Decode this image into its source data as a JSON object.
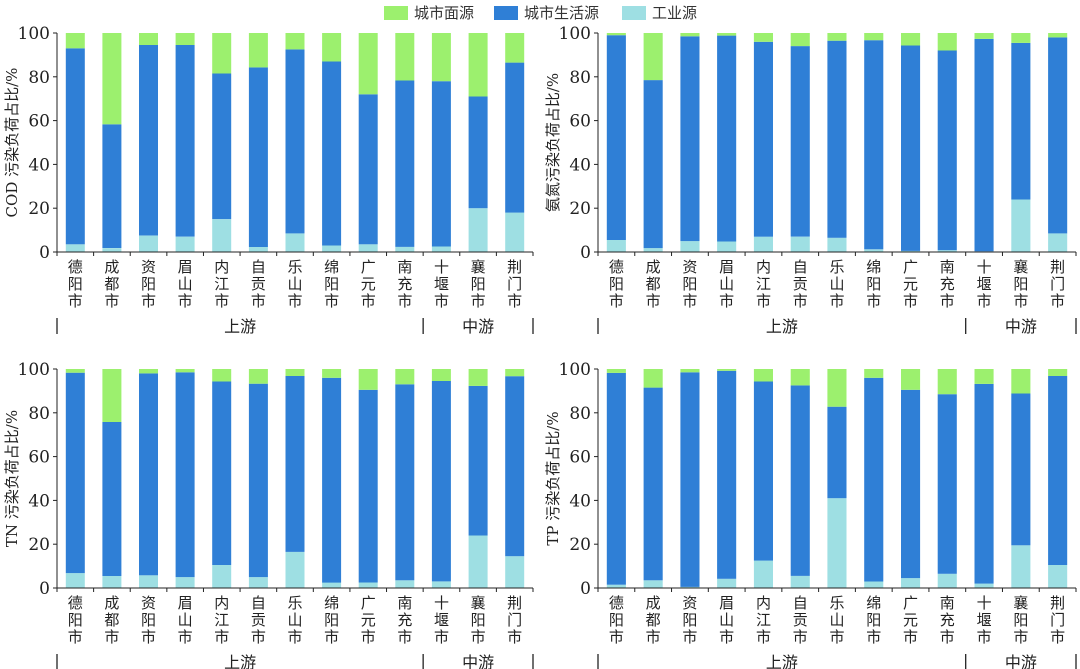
{
  "legend": [
    {
      "label": "城市面源",
      "color": "#9cf06e"
    },
    {
      "label": "城市生活源",
      "color": "#2f7fd6"
    },
    {
      "label": "工业源",
      "color": "#9edfe3"
    }
  ],
  "chart_data": [
    {
      "type": "bar",
      "stacked": true,
      "title": "",
      "ylabel": "COD 污染负荷占比/%",
      "xlabel": "",
      "ylim": [
        0,
        100
      ],
      "yticks": [
        0,
        20,
        40,
        60,
        80,
        100
      ],
      "categories": [
        "德阳市",
        "成都市",
        "资阳市",
        "眉山市",
        "内江市",
        "自贡市",
        "乐山市",
        "绵阳市",
        "广元市",
        "南充市",
        "十堰市",
        "襄阳市",
        "荆门市"
      ],
      "groups": [
        {
          "label": "上游",
          "from": 0,
          "to": 9
        },
        {
          "label": "中游",
          "from": 10,
          "to": 12
        }
      ],
      "series": [
        {
          "name": "工业源",
          "values": [
            3.5,
            1.8,
            7.5,
            7,
            15,
            2.3,
            8.5,
            3,
            3.5,
            2.3,
            2.5,
            20,
            18
          ]
        },
        {
          "name": "城市生活源",
          "values": [
            89.5,
            56.5,
            87,
            87.5,
            66.5,
            82,
            84,
            84,
            68.5,
            76,
            75.5,
            51,
            68.5
          ]
        },
        {
          "name": "城市面源",
          "values": [
            7,
            41.7,
            5.5,
            5.5,
            18.5,
            15.7,
            7.5,
            13,
            28,
            21.7,
            22,
            29,
            13.5
          ]
        }
      ]
    },
    {
      "type": "bar",
      "stacked": true,
      "title": "",
      "ylabel": "氨氮污染负荷占比/%",
      "xlabel": "",
      "ylim": [
        0,
        100
      ],
      "yticks": [
        0,
        20,
        40,
        60,
        80,
        100
      ],
      "categories": [
        "德阳市",
        "成都市",
        "资阳市",
        "眉山市",
        "内江市",
        "自贡市",
        "乐山市",
        "绵阳市",
        "广元市",
        "南充市",
        "十堰市",
        "襄阳市",
        "荆门市"
      ],
      "groups": [
        {
          "label": "上游",
          "from": 0,
          "to": 9
        },
        {
          "label": "中游",
          "from": 10,
          "to": 12
        }
      ],
      "series": [
        {
          "name": "工业源",
          "values": [
            5.5,
            1.8,
            5,
            4.8,
            7,
            7,
            6.5,
            1.2,
            0.5,
            0.8,
            0.3,
            24,
            8.5
          ]
        },
        {
          "name": "城市生活源",
          "values": [
            93.5,
            76.7,
            93.5,
            94,
            89,
            87,
            90,
            95.5,
            93.8,
            91.2,
            97,
            71.5,
            89.5
          ]
        },
        {
          "name": "城市面源",
          "values": [
            1,
            21.5,
            1.5,
            1.2,
            4,
            6,
            3.5,
            3.3,
            5.7,
            8,
            2.7,
            4.5,
            2
          ]
        }
      ]
    },
    {
      "type": "bar",
      "stacked": true,
      "title": "",
      "ylabel": "TN 污染负荷占比/%",
      "xlabel": "",
      "ylim": [
        0,
        100
      ],
      "yticks": [
        0,
        20,
        40,
        60,
        80,
        100
      ],
      "categories": [
        "德阳市",
        "成都市",
        "资阳市",
        "眉山市",
        "内江市",
        "自贡市",
        "乐山市",
        "绵阳市",
        "广元市",
        "南充市",
        "十堰市",
        "襄阳市",
        "荆门市"
      ],
      "groups": [
        {
          "label": "上游",
          "from": 0,
          "to": 9
        },
        {
          "label": "中游",
          "from": 10,
          "to": 12
        }
      ],
      "series": [
        {
          "name": "工业源",
          "values": [
            6.8,
            5.5,
            5.8,
            5,
            10.5,
            5,
            16.5,
            2.5,
            2.5,
            3.5,
            3,
            24,
            14.5
          ]
        },
        {
          "name": "城市生活源",
          "values": [
            91.5,
            70.3,
            92.2,
            93.5,
            83.8,
            88.3,
            80.3,
            93.5,
            88,
            89.5,
            91.5,
            68.3,
            82.2
          ]
        },
        {
          "name": "城市面源",
          "values": [
            1.7,
            24.2,
            2,
            1.5,
            5.7,
            6.7,
            3.2,
            4,
            9.5,
            7,
            5.5,
            7.7,
            3.3
          ]
        }
      ]
    },
    {
      "type": "bar",
      "stacked": true,
      "title": "",
      "ylabel": "TP 污染负荷占比/%",
      "xlabel": "",
      "ylim": [
        0,
        100
      ],
      "yticks": [
        0,
        20,
        40,
        60,
        80,
        100
      ],
      "categories": [
        "德阳市",
        "成都市",
        "资阳市",
        "眉山市",
        "内江市",
        "自贡市",
        "乐山市",
        "绵阳市",
        "广元市",
        "南充市",
        "十堰市",
        "襄阳市",
        "荆门市"
      ],
      "groups": [
        {
          "label": "上游",
          "from": 0,
          "to": 9
        },
        {
          "label": "中游",
          "from": 10,
          "to": 12
        }
      ],
      "series": [
        {
          "name": "工业源",
          "values": [
            1.5,
            3.5,
            0.5,
            4.2,
            12.5,
            5.5,
            41,
            3,
            4.5,
            6.5,
            2,
            19.5,
            10.5
          ]
        },
        {
          "name": "城市生活源",
          "values": [
            96.7,
            88,
            98,
            95,
            81.8,
            87,
            41.8,
            93,
            86,
            82,
            91.2,
            69.3,
            86.3
          ]
        },
        {
          "name": "城市面源",
          "values": [
            1.8,
            8.5,
            1.5,
            0.8,
            5.7,
            7.5,
            17.2,
            4,
            9.5,
            11.5,
            6.8,
            11.2,
            3.2
          ]
        }
      ]
    }
  ]
}
